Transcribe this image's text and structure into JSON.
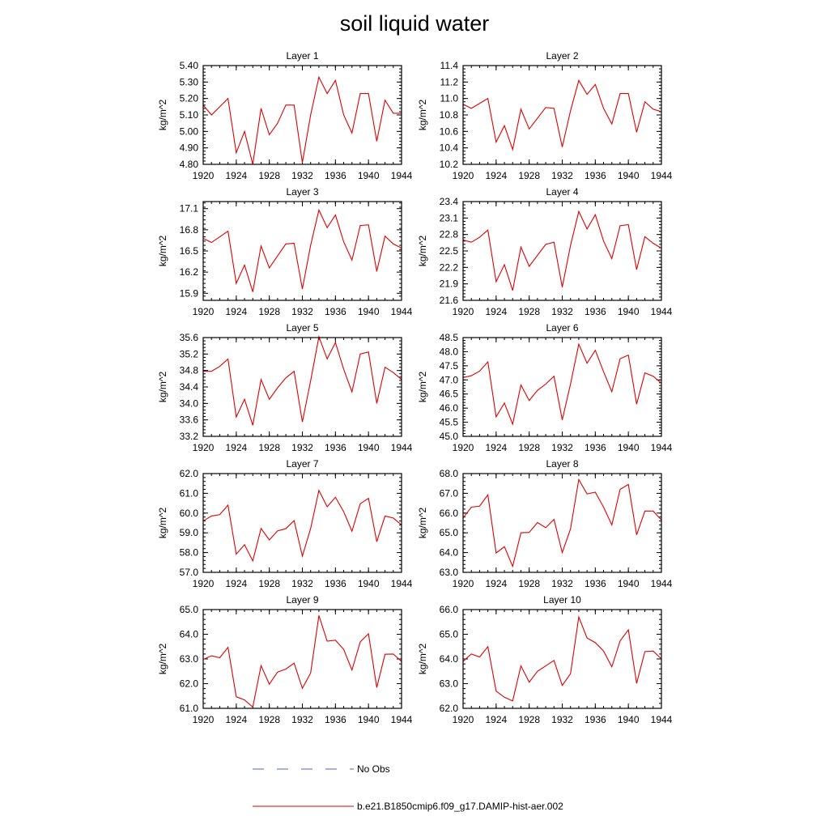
{
  "title": "soil liquid water",
  "legend": {
    "entries": [
      {
        "label": "No Obs",
        "color": "#5b5bd6",
        "style": "dashed"
      },
      {
        "label": "b.e21.B1850cmip6.f09_g17.DAMIP-hist-aer.002",
        "color": "#e00000",
        "style": "solid"
      }
    ]
  },
  "chart_data": [
    {
      "type": "line",
      "title": "Layer 1",
      "ylabel": "kg/m^2",
      "xlim": [
        1920,
        1944
      ],
      "ylim": [
        4.8,
        5.4
      ],
      "xticks": [
        "1920",
        "1924",
        "1928",
        "1932",
        "1936",
        "1940",
        "1944"
      ],
      "yticks": [
        "4.80",
        "4.90",
        "5.00",
        "5.10",
        "5.20",
        "5.30",
        "5.40"
      ],
      "x": [
        1920,
        1921,
        1922,
        1923,
        1924,
        1925,
        1926,
        1927,
        1928,
        1929,
        1930,
        1931,
        1932,
        1933,
        1934,
        1935,
        1936,
        1937,
        1938,
        1939,
        1940,
        1941,
        1942,
        1943,
        1944
      ],
      "series": [
        {
          "name": "b.e21.B1850cmip6.f09_g17.DAMIP-hist-aer.002",
          "color": "#e00000",
          "values": [
            5.16,
            5.1,
            5.15,
            5.2,
            4.87,
            5.0,
            4.8,
            5.14,
            4.98,
            5.05,
            5.16,
            5.16,
            4.81,
            5.1,
            5.33,
            5.23,
            5.31,
            5.1,
            4.99,
            5.23,
            5.23,
            4.94,
            5.19,
            5.11,
            5.11
          ]
        }
      ]
    },
    {
      "type": "line",
      "title": "Layer 2",
      "ylabel": "kg/m^2",
      "xlim": [
        1920,
        1944
      ],
      "ylim": [
        10.2,
        11.4
      ],
      "xticks": [
        "1920",
        "1924",
        "1928",
        "1932",
        "1936",
        "1940",
        "1944"
      ],
      "yticks": [
        "10.2",
        "10.4",
        "10.6",
        "10.8",
        "11.0",
        "11.2",
        "11.4"
      ],
      "x": [
        1920,
        1921,
        1922,
        1923,
        1924,
        1925,
        1926,
        1927,
        1928,
        1929,
        1930,
        1931,
        1932,
        1933,
        1934,
        1935,
        1936,
        1937,
        1938,
        1939,
        1940,
        1941,
        1942,
        1943,
        1944
      ],
      "series": [
        {
          "name": "b.e21.B1850cmip6.f09_g17.DAMIP-hist-aer.002",
          "color": "#e00000",
          "values": [
            10.93,
            10.88,
            10.94,
            11.0,
            10.47,
            10.67,
            10.38,
            10.87,
            10.63,
            10.76,
            10.89,
            10.88,
            10.41,
            10.85,
            11.22,
            11.05,
            11.17,
            10.88,
            10.69,
            11.06,
            11.06,
            10.59,
            10.96,
            10.87,
            10.84
          ]
        }
      ]
    },
    {
      "type": "line",
      "title": "Layer 3",
      "ylabel": "kg/m^2",
      "xlim": [
        1920,
        1944
      ],
      "ylim": [
        15.8,
        17.2
      ],
      "xticks": [
        "1920",
        "1924",
        "1928",
        "1932",
        "1936",
        "1940",
        "1944"
      ],
      "yticks": [
        "15.9",
        "16.2",
        "16.5",
        "16.8",
        "17.1"
      ],
      "x": [
        1920,
        1921,
        1922,
        1923,
        1924,
        1925,
        1926,
        1927,
        1928,
        1929,
        1930,
        1931,
        1932,
        1933,
        1934,
        1935,
        1936,
        1937,
        1938,
        1939,
        1940,
        1941,
        1942,
        1943,
        1944
      ],
      "series": [
        {
          "name": "b.e21.B1850cmip6.f09_g17.DAMIP-hist-aer.002",
          "color": "#e00000",
          "values": [
            16.68,
            16.62,
            16.7,
            16.78,
            16.04,
            16.3,
            15.92,
            16.57,
            16.26,
            16.43,
            16.6,
            16.61,
            15.96,
            16.58,
            17.08,
            16.83,
            17.01,
            16.63,
            16.37,
            16.86,
            16.87,
            16.21,
            16.71,
            16.6,
            16.54
          ]
        }
      ]
    },
    {
      "type": "line",
      "title": "Layer 4",
      "ylabel": "kg/m^2",
      "xlim": [
        1920,
        1944
      ],
      "ylim": [
        21.6,
        23.4
      ],
      "xticks": [
        "1920",
        "1924",
        "1928",
        "1932",
        "1936",
        "1940",
        "1944"
      ],
      "yticks": [
        "21.6",
        "21.9",
        "22.2",
        "22.5",
        "22.8",
        "23.1",
        "23.4"
      ],
      "x": [
        1920,
        1921,
        1922,
        1923,
        1924,
        1925,
        1926,
        1927,
        1928,
        1929,
        1930,
        1931,
        1932,
        1933,
        1934,
        1935,
        1936,
        1937,
        1938,
        1939,
        1940,
        1941,
        1942,
        1943,
        1944
      ],
      "series": [
        {
          "name": "b.e21.B1850cmip6.f09_g17.DAMIP-hist-aer.002",
          "color": "#e00000",
          "values": [
            22.7,
            22.66,
            22.75,
            22.88,
            21.94,
            22.25,
            21.78,
            22.57,
            22.22,
            22.42,
            22.62,
            22.66,
            21.84,
            22.6,
            23.22,
            22.9,
            23.16,
            22.68,
            22.36,
            22.96,
            22.98,
            22.16,
            22.76,
            22.64,
            22.55
          ]
        }
      ]
    },
    {
      "type": "line",
      "title": "Layer 5",
      "ylabel": "kg/m^2",
      "xlim": [
        1920,
        1944
      ],
      "ylim": [
        33.2,
        35.6
      ],
      "xticks": [
        "1920",
        "1924",
        "1928",
        "1932",
        "1936",
        "1940",
        "1944"
      ],
      "yticks": [
        "33.2",
        "33.6",
        "34.0",
        "34.4",
        "34.8",
        "35.2",
        "35.6"
      ],
      "x": [
        1920,
        1921,
        1922,
        1923,
        1924,
        1925,
        1926,
        1927,
        1928,
        1929,
        1930,
        1931,
        1932,
        1933,
        1934,
        1935,
        1936,
        1937,
        1938,
        1939,
        1940,
        1941,
        1942,
        1943,
        1944
      ],
      "series": [
        {
          "name": "b.e21.B1850cmip6.f09_g17.DAMIP-hist-aer.002",
          "color": "#e00000",
          "values": [
            34.78,
            34.78,
            34.9,
            35.08,
            33.67,
            34.1,
            33.47,
            34.58,
            34.1,
            34.38,
            34.62,
            34.78,
            33.55,
            34.55,
            35.62,
            35.08,
            35.48,
            34.83,
            34.28,
            35.2,
            35.25,
            34.0,
            34.88,
            34.75,
            34.58
          ]
        }
      ]
    },
    {
      "type": "line",
      "title": "Layer 6",
      "ylabel": "kg/m^2",
      "xlim": [
        1920,
        1944
      ],
      "ylim": [
        45.0,
        48.5
      ],
      "xticks": [
        "1920",
        "1924",
        "1928",
        "1932",
        "1936",
        "1940",
        "1944"
      ],
      "yticks": [
        "45.0",
        "45.5",
        "46.0",
        "46.5",
        "47.0",
        "47.5",
        "48.0",
        "48.5"
      ],
      "x": [
        1920,
        1921,
        1922,
        1923,
        1924,
        1925,
        1926,
        1927,
        1928,
        1929,
        1930,
        1931,
        1932,
        1933,
        1934,
        1935,
        1936,
        1937,
        1938,
        1939,
        1940,
        1941,
        1942,
        1943,
        1944
      ],
      "series": [
        {
          "name": "b.e21.B1850cmip6.f09_g17.DAMIP-hist-aer.002",
          "color": "#e00000",
          "values": [
            47.08,
            47.15,
            47.31,
            47.64,
            45.69,
            46.18,
            45.43,
            46.82,
            46.27,
            46.63,
            46.85,
            47.13,
            45.58,
            46.85,
            48.27,
            47.59,
            48.05,
            47.29,
            46.58,
            47.75,
            47.88,
            46.14,
            47.25,
            47.13,
            46.88
          ]
        }
      ]
    },
    {
      "type": "line",
      "title": "Layer 7",
      "ylabel": "kg/m^2",
      "xlim": [
        1920,
        1944
      ],
      "ylim": [
        57.0,
        62.0
      ],
      "xticks": [
        "1920",
        "1924",
        "1928",
        "1932",
        "1936",
        "1940",
        "1944"
      ],
      "yticks": [
        "57.0",
        "58.0",
        "59.0",
        "60.0",
        "61.0",
        "62.0"
      ],
      "x": [
        1920,
        1921,
        1922,
        1923,
        1924,
        1925,
        1926,
        1927,
        1928,
        1929,
        1930,
        1931,
        1932,
        1933,
        1934,
        1935,
        1936,
        1937,
        1938,
        1939,
        1940,
        1941,
        1942,
        1943,
        1944
      ],
      "series": [
        {
          "name": "b.e21.B1850cmip6.f09_g17.DAMIP-hist-aer.002",
          "color": "#e00000",
          "values": [
            59.6,
            59.85,
            59.92,
            60.4,
            57.92,
            58.4,
            57.58,
            59.22,
            58.64,
            59.1,
            59.21,
            59.62,
            57.82,
            59.22,
            61.15,
            60.32,
            60.8,
            60.07,
            59.08,
            60.47,
            60.75,
            58.55,
            59.85,
            59.75,
            59.4
          ]
        }
      ]
    },
    {
      "type": "line",
      "title": "Layer 8",
      "ylabel": "kg/m^2",
      "xlim": [
        1920,
        1944
      ],
      "ylim": [
        63.0,
        68.0
      ],
      "xticks": [
        "1920",
        "1924",
        "1928",
        "1932",
        "1936",
        "1940",
        "1944"
      ],
      "yticks": [
        "63.0",
        "64.0",
        "65.0",
        "66.0",
        "67.0",
        "68.0"
      ],
      "x": [
        1920,
        1921,
        1922,
        1923,
        1924,
        1925,
        1926,
        1927,
        1928,
        1929,
        1930,
        1931,
        1932,
        1933,
        1934,
        1935,
        1936,
        1937,
        1938,
        1939,
        1940,
        1941,
        1942,
        1943,
        1944
      ],
      "series": [
        {
          "name": "b.e21.B1850cmip6.f09_g17.DAMIP-hist-aer.002",
          "color": "#e00000",
          "values": [
            65.75,
            66.3,
            66.35,
            66.92,
            63.98,
            64.3,
            63.3,
            65.0,
            65.02,
            65.52,
            65.26,
            65.68,
            64.0,
            65.2,
            67.7,
            66.97,
            67.06,
            66.3,
            65.4,
            67.2,
            67.45,
            64.9,
            66.1,
            66.1,
            65.65
          ]
        }
      ]
    },
    {
      "type": "line",
      "title": "Layer 9",
      "ylabel": "kg/m^2",
      "xlim": [
        1920,
        1944
      ],
      "ylim": [
        61.0,
        65.0
      ],
      "xticks": [
        "1920",
        "1924",
        "1928",
        "1932",
        "1936",
        "1940",
        "1944"
      ],
      "yticks": [
        "61.0",
        "62.0",
        "63.0",
        "64.0",
        "65.0"
      ],
      "x": [
        1920,
        1921,
        1922,
        1923,
        1924,
        1925,
        1926,
        1927,
        1928,
        1929,
        1930,
        1931,
        1932,
        1933,
        1934,
        1935,
        1936,
        1937,
        1938,
        1939,
        1940,
        1941,
        1942,
        1943,
        1944
      ],
      "series": [
        {
          "name": "b.e21.B1850cmip6.f09_g17.DAMIP-hist-aer.002",
          "color": "#e00000",
          "values": [
            62.98,
            63.13,
            63.05,
            63.47,
            61.47,
            61.34,
            61.05,
            62.73,
            61.98,
            62.47,
            62.59,
            62.83,
            61.81,
            62.43,
            64.76,
            63.72,
            63.76,
            63.39,
            62.55,
            63.69,
            64.02,
            61.84,
            63.19,
            63.2,
            62.9
          ]
        }
      ]
    },
    {
      "type": "line",
      "title": "Layer 10",
      "ylabel": "kg/m^2",
      "xlim": [
        1920,
        1944
      ],
      "ylim": [
        62.0,
        66.0
      ],
      "xticks": [
        "1920",
        "1924",
        "1928",
        "1932",
        "1936",
        "1940",
        "1944"
      ],
      "yticks": [
        "62.0",
        "63.0",
        "64.0",
        "65.0",
        "66.0"
      ],
      "x": [
        1920,
        1921,
        1922,
        1923,
        1924,
        1925,
        1926,
        1927,
        1928,
        1929,
        1930,
        1931,
        1932,
        1933,
        1934,
        1935,
        1936,
        1937,
        1938,
        1939,
        1940,
        1941,
        1942,
        1943,
        1944
      ],
      "series": [
        {
          "name": "b.e21.B1850cmip6.f09_g17.DAMIP-hist-aer.002",
          "color": "#e00000",
          "values": [
            63.9,
            64.2,
            64.08,
            64.5,
            62.7,
            62.45,
            62.3,
            63.72,
            63.06,
            63.5,
            63.72,
            63.94,
            62.93,
            63.4,
            65.7,
            64.85,
            64.66,
            64.32,
            63.68,
            64.73,
            65.18,
            63.01,
            64.3,
            64.32,
            64.0
          ]
        }
      ]
    }
  ]
}
